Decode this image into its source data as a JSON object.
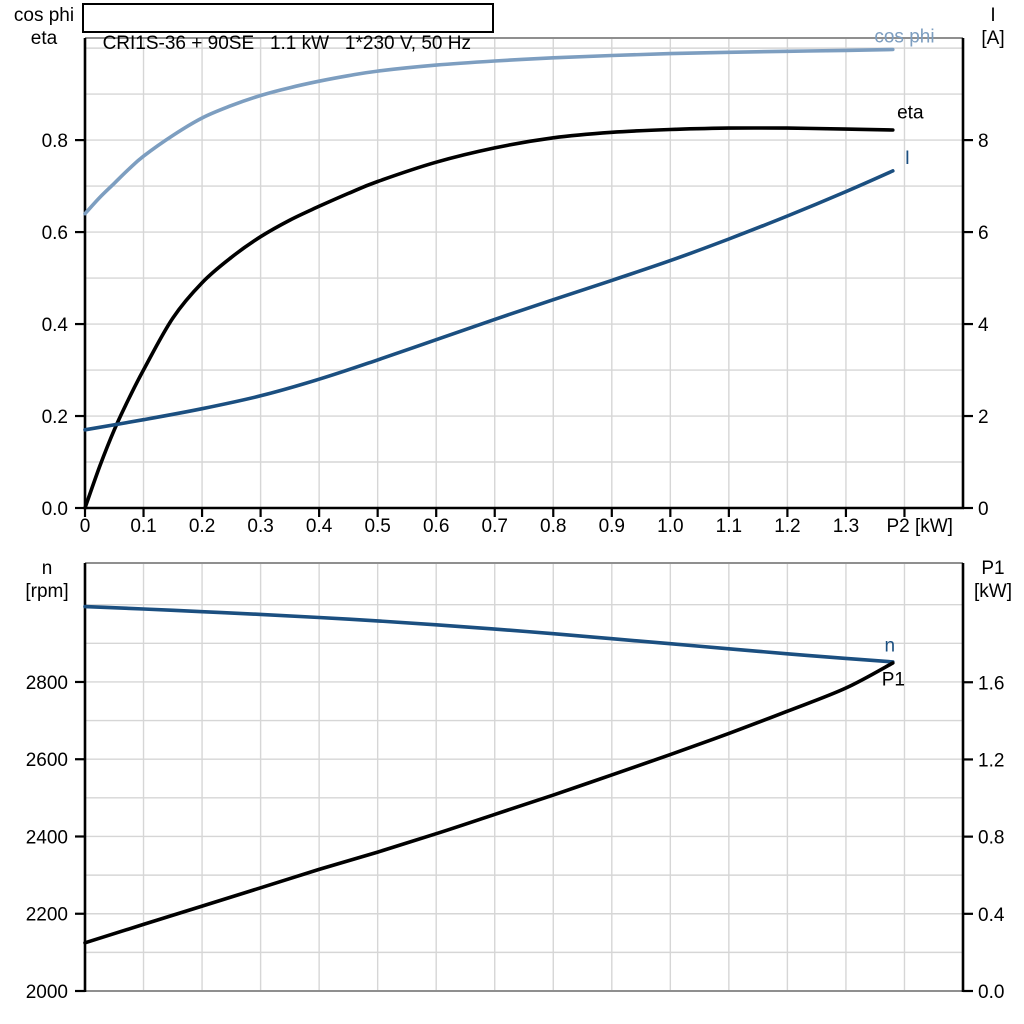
{
  "colors": {
    "black": "#000000",
    "dark_blue": "#1B4F80",
    "light_blue": "#7D9EC0",
    "grid": "#D6D6D6",
    "frame_gray": "#8F8F8F"
  },
  "chart_data": [
    {
      "type": "line",
      "title": "CRI1S-36 + 90SE   1.1 kW   1*230 V, 50 Hz",
      "x_axis": {
        "label": "P2 [kW]",
        "min": 0,
        "max": 1.5,
        "gridline_step": 0.1,
        "tick_step": 0.1,
        "tick_labels": [
          "0",
          "0.1",
          "0.2",
          "0.3",
          "0.4",
          "0.5",
          "0.6",
          "0.7",
          "0.8",
          "0.9",
          "1.0",
          "1.1",
          "1.2",
          "1.3"
        ]
      },
      "y_axis_left": {
        "label_lines": [
          "cos phi",
          "eta"
        ],
        "min": 0,
        "max": 1.022,
        "gridline_step": 0.1,
        "tick_values": [
          0,
          0.2,
          0.4,
          0.6,
          0.8
        ],
        "tick_labels": [
          "0.0",
          "0.2",
          "0.4",
          "0.6",
          "0.8"
        ]
      },
      "y_axis_right": {
        "label_lines": [
          "I",
          "[A]"
        ],
        "min": 0,
        "max": 10.22,
        "tick_values": [
          0,
          2,
          4,
          6,
          8
        ],
        "tick_labels": [
          "0",
          "2",
          "4",
          "6",
          "8"
        ]
      },
      "grid": true,
      "legend_position": "end-of-curve-labels",
      "series": [
        {
          "name": "cos phi",
          "axis": "left",
          "color_key": "light_blue",
          "x": [
            0,
            0.025,
            0.05,
            0.075,
            0.1,
            0.15,
            0.2,
            0.25,
            0.3,
            0.35,
            0.4,
            0.45,
            0.5,
            0.6,
            0.7,
            0.8,
            0.9,
            1.0,
            1.1,
            1.2,
            1.3,
            1.38
          ],
          "y": [
            0.64,
            0.675,
            0.706,
            0.737,
            0.765,
            0.81,
            0.848,
            0.875,
            0.897,
            0.914,
            0.928,
            0.94,
            0.95,
            0.963,
            0.972,
            0.979,
            0.984,
            0.988,
            0.991,
            0.993,
            0.995,
            0.997
          ]
        },
        {
          "name": "eta",
          "axis": "left",
          "color_key": "black",
          "x": [
            0,
            0.025,
            0.05,
            0.075,
            0.1,
            0.15,
            0.2,
            0.25,
            0.3,
            0.35,
            0.4,
            0.45,
            0.5,
            0.6,
            0.7,
            0.8,
            0.9,
            1.0,
            1.1,
            1.2,
            1.3,
            1.38
          ],
          "y": [
            0.0,
            0.09,
            0.17,
            0.238,
            0.3,
            0.413,
            0.49,
            0.545,
            0.59,
            0.626,
            0.656,
            0.684,
            0.71,
            0.752,
            0.783,
            0.805,
            0.817,
            0.823,
            0.826,
            0.826,
            0.824,
            0.822
          ]
        },
        {
          "name": "I",
          "axis": "right",
          "color_key": "dark_blue",
          "x": [
            0,
            0.1,
            0.2,
            0.3,
            0.4,
            0.5,
            0.6,
            0.7,
            0.8,
            0.9,
            1.0,
            1.1,
            1.2,
            1.3,
            1.38
          ],
          "y": [
            1.7,
            1.92,
            2.16,
            2.44,
            2.8,
            3.22,
            3.66,
            4.1,
            4.53,
            4.95,
            5.38,
            5.85,
            6.35,
            6.88,
            7.33
          ]
        }
      ],
      "annotations": [
        {
          "text": "cos phi",
          "x": 1.4,
          "y": 1.027,
          "axis": "left",
          "color_key": "light_blue"
        },
        {
          "text": "eta",
          "x": 1.41,
          "y": 0.862,
          "axis": "left",
          "color_key": "black"
        },
        {
          "text": "I",
          "x": 1.405,
          "y": 7.63,
          "axis": "right",
          "color_key": "dark_blue"
        }
      ]
    },
    {
      "type": "line",
      "title": "",
      "x_axis": {
        "label": "",
        "min": 0,
        "max": 1.5,
        "gridline_step": 0.1,
        "tick_step": 0,
        "tick_labels": []
      },
      "y_axis_left": {
        "label_lines": [
          "n",
          "[rpm]"
        ],
        "min": 2000,
        "max": 3108,
        "gridline_step": 100,
        "tick_values": [
          2000,
          2200,
          2400,
          2600,
          2800
        ],
        "tick_labels": [
          "2000",
          "2200",
          "2400",
          "2600",
          "2800"
        ]
      },
      "y_axis_right": {
        "label_lines": [
          "P1",
          "[kW]"
        ],
        "min": 0,
        "max": 2.218,
        "tick_values": [
          0,
          0.4,
          0.8,
          1.2,
          1.6
        ],
        "tick_labels": [
          "0.0",
          "0.4",
          "0.8",
          "1.2",
          "1.6"
        ]
      },
      "grid": true,
      "legend_position": "end-of-curve-labels",
      "series": [
        {
          "name": "n",
          "axis": "left",
          "color_key": "dark_blue",
          "x": [
            0,
            0.1,
            0.2,
            0.3,
            0.4,
            0.5,
            0.6,
            0.7,
            0.8,
            0.9,
            1.0,
            1.1,
            1.2,
            1.3,
            1.38
          ],
          "y": [
            2995,
            2989,
            2982,
            2975,
            2967,
            2958,
            2948,
            2937,
            2925,
            2912,
            2899,
            2886,
            2873,
            2861,
            2852
          ]
        },
        {
          "name": "P1",
          "axis": "right",
          "color_key": "black",
          "x": [
            0,
            0.1,
            0.2,
            0.3,
            0.4,
            0.5,
            0.6,
            0.7,
            0.8,
            0.9,
            1.0,
            1.1,
            1.2,
            1.3,
            1.38
          ],
          "y": [
            0.25,
            0.345,
            0.44,
            0.535,
            0.63,
            0.72,
            0.815,
            0.915,
            1.015,
            1.12,
            1.225,
            1.335,
            1.45,
            1.57,
            1.7
          ]
        }
      ],
      "annotations": [
        {
          "text": "n",
          "x": 1.375,
          "y": 2897,
          "axis": "left",
          "color_key": "dark_blue"
        },
        {
          "text": "P1",
          "x": 1.381,
          "y": 1.62,
          "axis": "right",
          "color_key": "black"
        }
      ]
    }
  ]
}
